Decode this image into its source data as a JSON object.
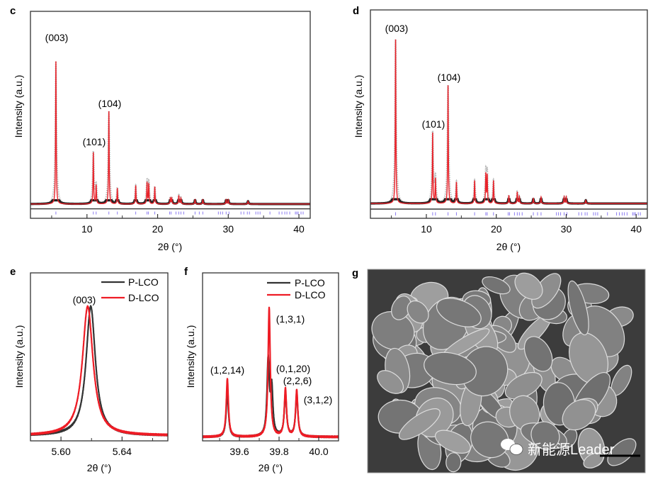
{
  "figure": {
    "panel_letters": {
      "c": "c",
      "d": "d",
      "e": "e",
      "f": "f",
      "g": "g"
    },
    "watermark": "新能源Leader",
    "colors": {
      "calculated": "#e8232b",
      "observed": "#222222",
      "bragg": "#8c7cf0",
      "p_lco": "#333333",
      "d_lco": "#ee1c25"
    }
  },
  "chart_data": [
    {
      "panel": "c",
      "type": "line",
      "xlabel": "2θ (°)",
      "ylabel": "Intensity (a.u.)",
      "xlim": [
        2,
        41.6
      ],
      "ylim": [
        -10,
        135
      ],
      "xticks": [
        10,
        20,
        30,
        40
      ],
      "xtick_labels": [
        "10",
        "20",
        "30",
        "40"
      ],
      "minor_xticks": [
        5,
        15,
        25,
        35
      ],
      "peak_width": 0.05,
      "peaks": [
        [
          5.6,
          100
        ],
        [
          10.9,
          36
        ],
        [
          11.3,
          13
        ],
        [
          13.1,
          65
        ],
        [
          14.3,
          11
        ],
        [
          16.9,
          13
        ],
        [
          18.5,
          15
        ],
        [
          18.75,
          14
        ],
        [
          19.6,
          12
        ],
        [
          21.8,
          4
        ],
        [
          22.0,
          4
        ],
        [
          23.0,
          6
        ],
        [
          23.3,
          4
        ],
        [
          25.3,
          3
        ],
        [
          26.4,
          3
        ],
        [
          29.7,
          3
        ],
        [
          30.0,
          3
        ],
        [
          32.8,
          2
        ]
      ],
      "bragg_positions": [
        5.6,
        10.9,
        11.3,
        13.1,
        14.3,
        16.9,
        18.5,
        18.7,
        19.6,
        21.7,
        21.9,
        22.6,
        23.0,
        23.3,
        23.7,
        25.3,
        25.9,
        26.4,
        28.6,
        28.9,
        29.2,
        29.7,
        30.1,
        31.8,
        32.2,
        32.7,
        33.0,
        33.9,
        34.2,
        34.5,
        35.9,
        37.2,
        37.6,
        38.0,
        38.3,
        38.7,
        39.5,
        39.7,
        39.9,
        40.3,
        40.6
      ],
      "annotations": [
        {
          "label": "(003)",
          "x": 5.6
        },
        {
          "label": "(101)",
          "x": 10.9
        },
        {
          "label": "(104)",
          "x": 13.1
        }
      ]
    },
    {
      "panel": "d",
      "type": "line",
      "xlabel": "2θ (°)",
      "ylabel": "Intensity (a.u.)",
      "xlim": [
        2,
        41.6
      ],
      "ylim": [
        -9,
        118
      ],
      "xticks": [
        10,
        20,
        30,
        40
      ],
      "xtick_labels": [
        "10",
        "20",
        "30",
        "40"
      ],
      "minor_xticks": [
        5,
        15,
        25,
        35
      ],
      "peak_width": 0.05,
      "peaks": [
        [
          5.6,
          100
        ],
        [
          10.9,
          43
        ],
        [
          11.3,
          15
        ],
        [
          13.1,
          72
        ],
        [
          14.3,
          13
        ],
        [
          16.9,
          14
        ],
        [
          18.5,
          18
        ],
        [
          18.7,
          17
        ],
        [
          19.6,
          14
        ],
        [
          21.8,
          5
        ],
        [
          23.0,
          7
        ],
        [
          23.3,
          4
        ],
        [
          25.3,
          3
        ],
        [
          26.4,
          4
        ],
        [
          29.7,
          4
        ],
        [
          30.0,
          4
        ],
        [
          32.8,
          2
        ]
      ],
      "bragg_positions": [
        5.6,
        10.9,
        11.3,
        13.1,
        14.3,
        16.9,
        18.5,
        18.7,
        19.6,
        21.7,
        21.9,
        22.6,
        23.0,
        23.3,
        23.7,
        25.3,
        25.9,
        26.4,
        28.6,
        28.9,
        29.2,
        29.7,
        30.1,
        31.8,
        32.2,
        32.7,
        33.0,
        33.9,
        34.2,
        34.5,
        35.9,
        37.2,
        37.6,
        38.0,
        38.3,
        38.7,
        39.5,
        39.7,
        39.9,
        40.3,
        40.6
      ],
      "annotations": [
        {
          "label": "(003)",
          "x": 5.6
        },
        {
          "label": "(101)",
          "x": 10.9
        },
        {
          "label": "(104)",
          "x": 13.1
        }
      ]
    },
    {
      "panel": "e",
      "type": "line",
      "xlabel": "2θ (°)",
      "ylabel": "Intensity (a.u.)",
      "xlim": [
        5.58,
        5.67
      ],
      "ylim": [
        -0.04,
        1.26
      ],
      "xticks": [
        5.6,
        5.64
      ],
      "xtick_labels": [
        "5.60",
        "5.64"
      ],
      "minor_xticks": [
        5.62,
        5.66
      ],
      "legend": "top-right",
      "series": [
        {
          "name": "P-LCO",
          "color": "#333333",
          "peak_width": 0.0037,
          "peaks": [
            [
              5.6195,
              1.0
            ]
          ]
        },
        {
          "name": "D-LCO",
          "color": "#ee1c25",
          "peak_width": 0.0042,
          "peaks": [
            [
              5.6175,
              1.0
            ]
          ]
        }
      ],
      "annotations": [
        {
          "label": "(003)"
        }
      ]
    },
    {
      "panel": "f",
      "type": "line",
      "xlabel": "2θ (°)",
      "ylabel": "Intensity (a.u.)",
      "xlim": [
        39.414,
        40.1
      ],
      "ylim": [
        -0.03,
        1.27
      ],
      "xticks": [
        39.6,
        39.8,
        40.0
      ],
      "xtick_labels": [
        "39.6",
        "39.8",
        "40.0"
      ],
      "minor_xticks": [
        39.5,
        39.7,
        39.9
      ],
      "legend": "top-right",
      "series": [
        {
          "name": "P-LCO",
          "color": "#333333",
          "peak_width": 0.007,
          "peaks": [
            [
              39.539,
              0.34
            ],
            [
              39.745,
              0.58
            ],
            [
              39.763,
              0.36
            ],
            [
              39.832,
              0.33
            ],
            [
              39.889,
              0.33
            ]
          ]
        },
        {
          "name": "D-LCO",
          "color": "#ee1c25",
          "peak_width": 0.0065,
          "peaks": [
            [
              39.539,
              0.45
            ],
            [
              39.75,
              1.0
            ],
            [
              39.832,
              0.37
            ],
            [
              39.889,
              0.36
            ]
          ]
        }
      ],
      "annotations": [
        {
          "label": "(1,2,14)"
        },
        {
          "label": "(1,3,1)"
        },
        {
          "label": "(0,1,20)"
        },
        {
          "label": "(2,2,6)"
        },
        {
          "label": "(3,1,2)"
        }
      ]
    }
  ]
}
